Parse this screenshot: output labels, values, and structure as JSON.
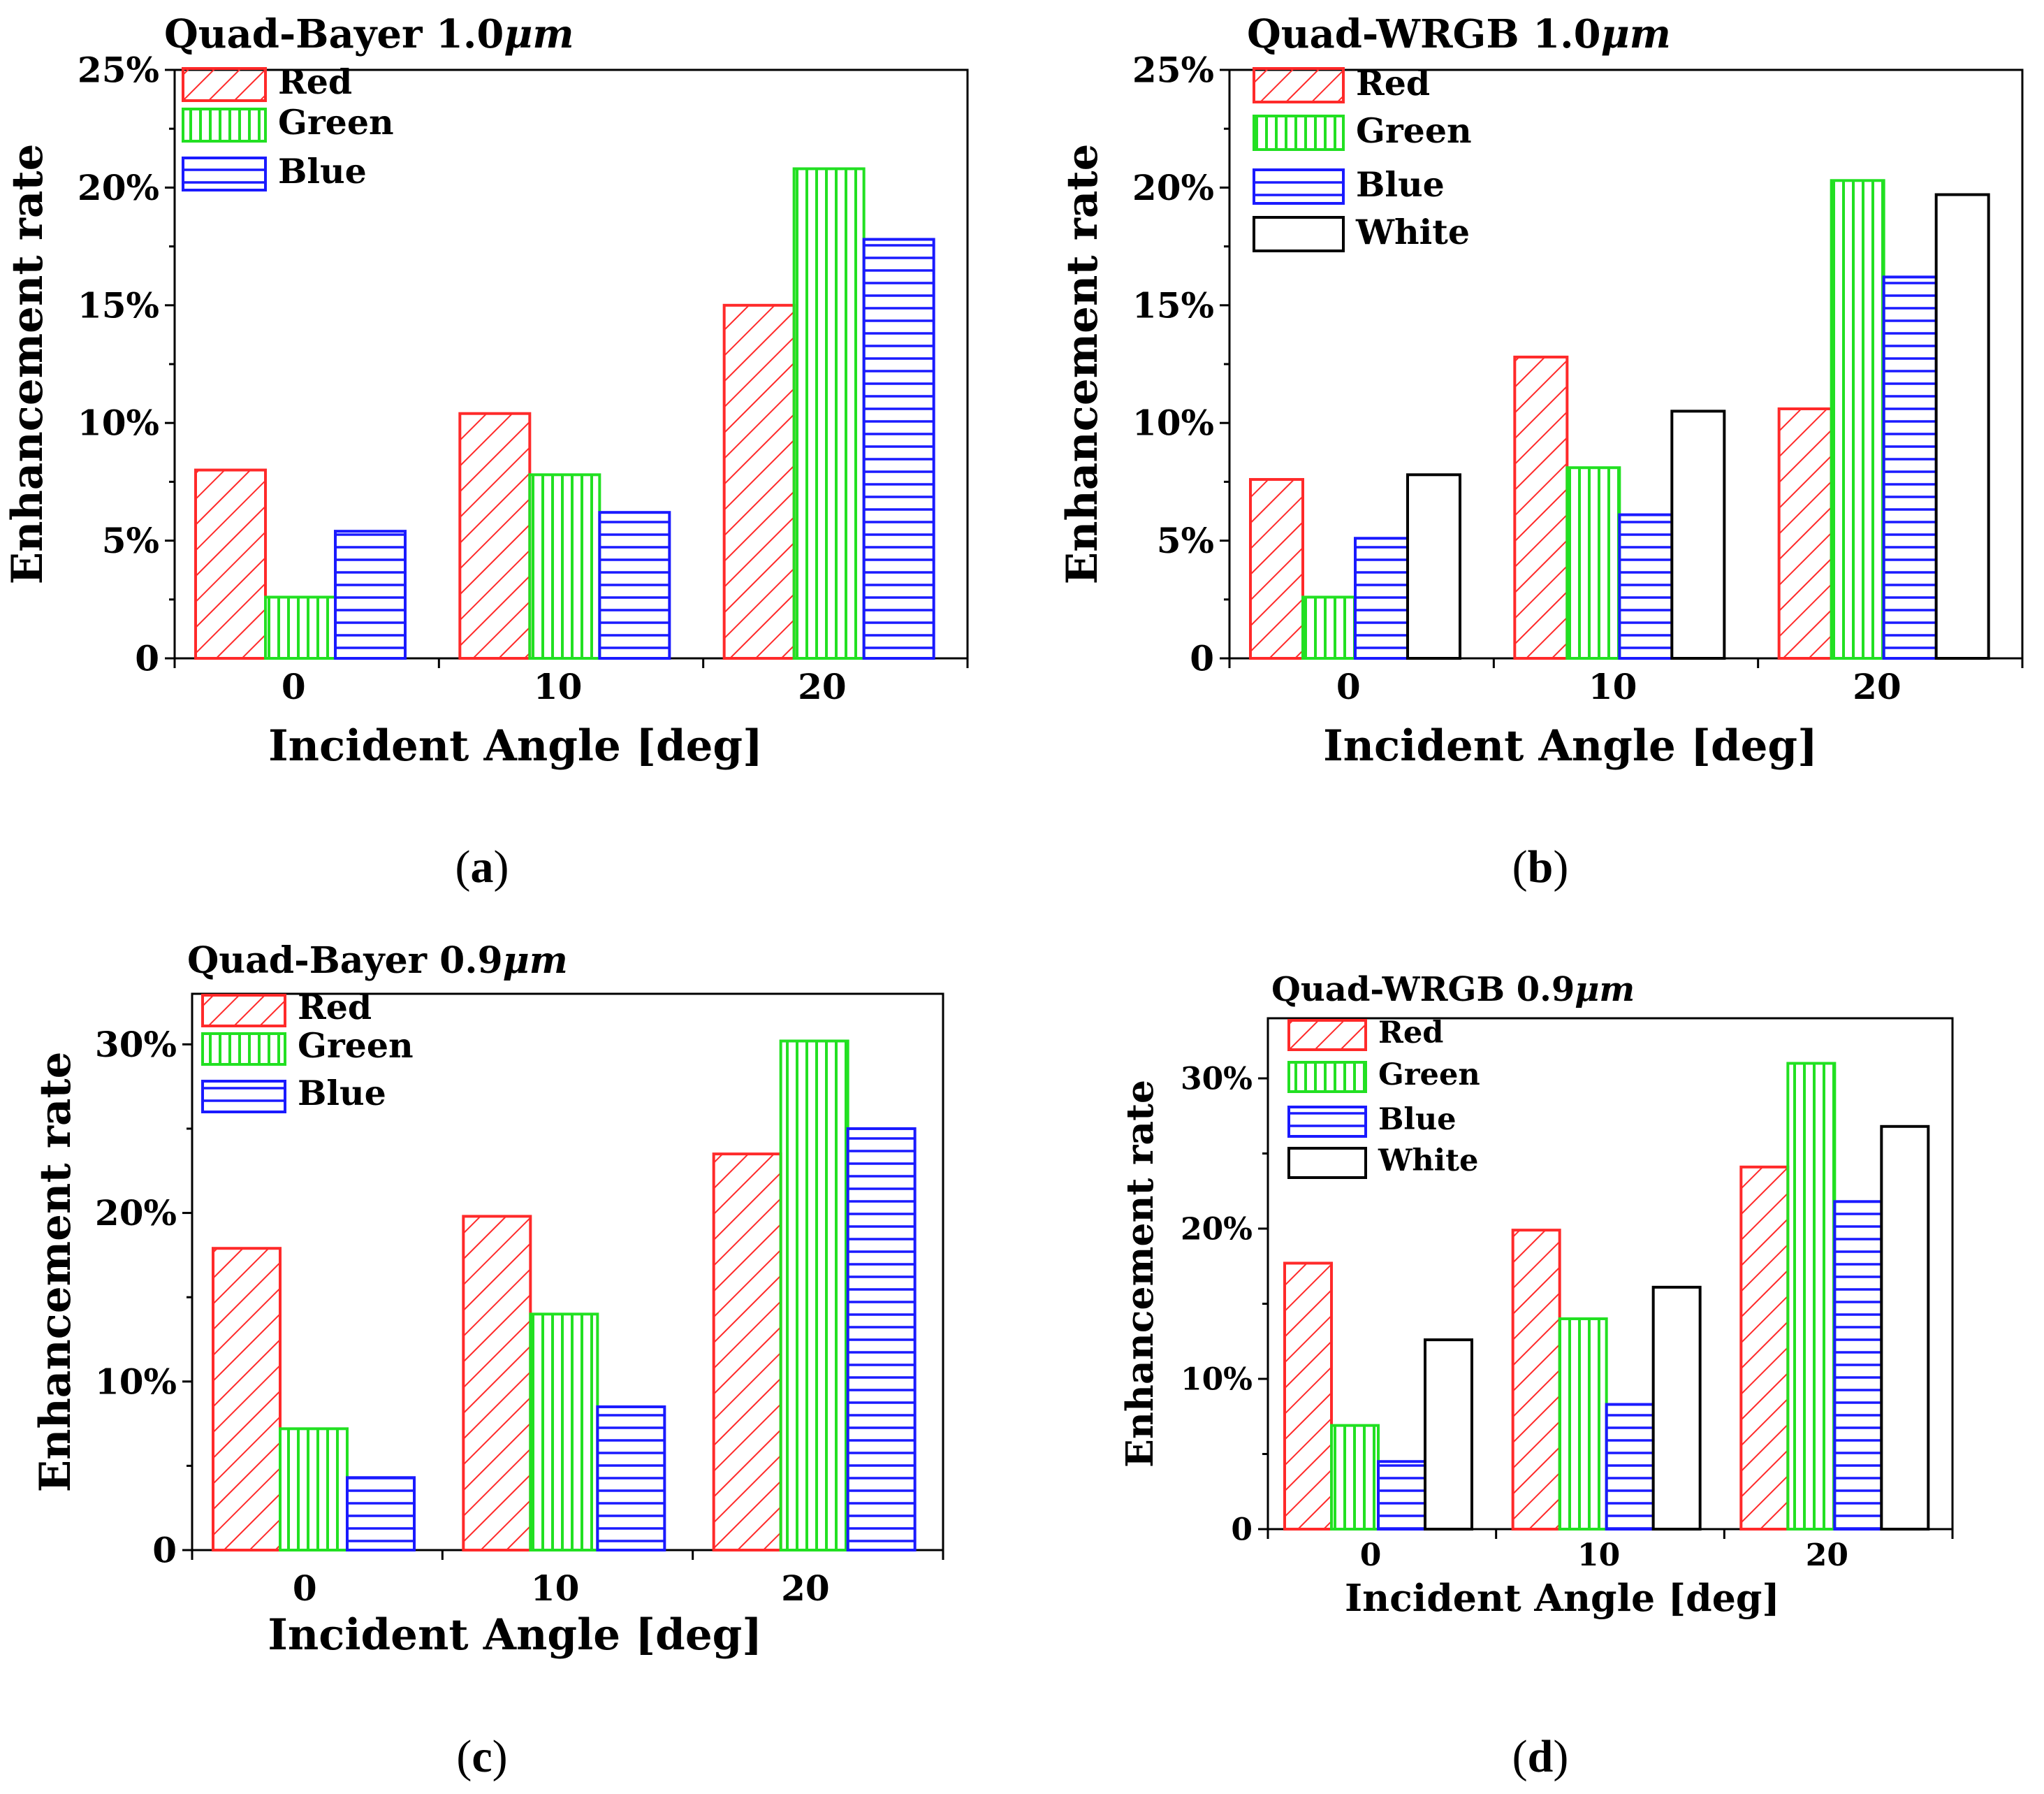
{
  "chart_data": [
    {
      "type": "bar",
      "panel": "(a)",
      "title": "Quad-Bayer 1.0",
      "title_unit": "μm",
      "xlabel": "Incident Angle [deg]",
      "ylabel": "Enhancement rate",
      "categories": [
        "0",
        "10",
        "20"
      ],
      "ylim": [
        0,
        25
      ],
      "yticks": [
        0,
        5,
        10,
        15,
        20,
        25
      ],
      "ytick_labels": [
        "0",
        "5%",
        "10%",
        "15%",
        "20%",
        "25%"
      ],
      "legend_position": "top-left",
      "series": [
        {
          "name": "Red",
          "values": [
            8.0,
            10.4,
            15.0
          ]
        },
        {
          "name": "Green",
          "values": [
            2.6,
            7.8,
            20.8
          ]
        },
        {
          "name": "Blue",
          "values": [
            5.4,
            6.2,
            17.8
          ]
        }
      ]
    },
    {
      "type": "bar",
      "panel": "(b)",
      "title": "Quad-WRGB 1.0",
      "title_unit": "μm",
      "xlabel": "Incident Angle [deg]",
      "ylabel": "Enhancement rate",
      "categories": [
        "0",
        "10",
        "20"
      ],
      "ylim": [
        0,
        25
      ],
      "yticks": [
        0,
        5,
        10,
        15,
        20,
        25
      ],
      "ytick_labels": [
        "0",
        "5%",
        "10%",
        "15%",
        "20%",
        "25%"
      ],
      "legend_position": "top-left",
      "series": [
        {
          "name": "Red",
          "values": [
            7.6,
            12.8,
            10.6
          ]
        },
        {
          "name": "Green",
          "values": [
            2.6,
            8.1,
            20.3
          ]
        },
        {
          "name": "Blue",
          "values": [
            5.1,
            6.1,
            16.2
          ]
        },
        {
          "name": "White",
          "values": [
            7.8,
            10.5,
            19.7
          ]
        }
      ]
    },
    {
      "type": "bar",
      "panel": "(c)",
      "title": "Quad-Bayer 0.9",
      "title_unit": "μm",
      "xlabel": "Incident Angle [deg]",
      "ylabel": "Enhancement rate",
      "categories": [
        "0",
        "10",
        "20"
      ],
      "ylim": [
        0,
        33
      ],
      "yticks": [
        0,
        10,
        20,
        30
      ],
      "ytick_labels": [
        "0",
        "10%",
        "20%",
        "30%"
      ],
      "legend_position": "top-left",
      "series": [
        {
          "name": "Red",
          "values": [
            17.9,
            19.8,
            23.5
          ]
        },
        {
          "name": "Green",
          "values": [
            7.2,
            14.0,
            30.2
          ]
        },
        {
          "name": "Blue",
          "values": [
            4.3,
            8.5,
            25.0
          ]
        }
      ]
    },
    {
      "type": "bar",
      "panel": "(d)",
      "title": "Quad-WRGB 0.9",
      "title_unit": "μm",
      "xlabel": "Incident Angle [deg]",
      "ylabel": "Enhancement rate",
      "categories": [
        "0",
        "10",
        "20"
      ],
      "ylim": [
        0,
        34
      ],
      "yticks": [
        0,
        10,
        20,
        30
      ],
      "ytick_labels": [
        "0",
        "10%",
        "20%",
        "30%"
      ],
      "legend_position": "top-left",
      "series": [
        {
          "name": "Red",
          "values": [
            17.7,
            19.9,
            24.1
          ]
        },
        {
          "name": "Green",
          "values": [
            6.9,
            14.0,
            31.0
          ]
        },
        {
          "name": "Blue",
          "values": [
            4.5,
            8.3,
            21.8
          ]
        },
        {
          "name": "White",
          "values": [
            12.6,
            16.1,
            26.8
          ]
        }
      ]
    }
  ],
  "series_colors": {
    "Red": "#ff2a2a",
    "Green": "#22e022",
    "Blue": "#1a1aff",
    "White": "#000000"
  },
  "series_patterns": {
    "Red": "diagonal-hatch",
    "Green": "vertical-hatch",
    "Blue": "horizontal-hatch",
    "White": "empty"
  }
}
